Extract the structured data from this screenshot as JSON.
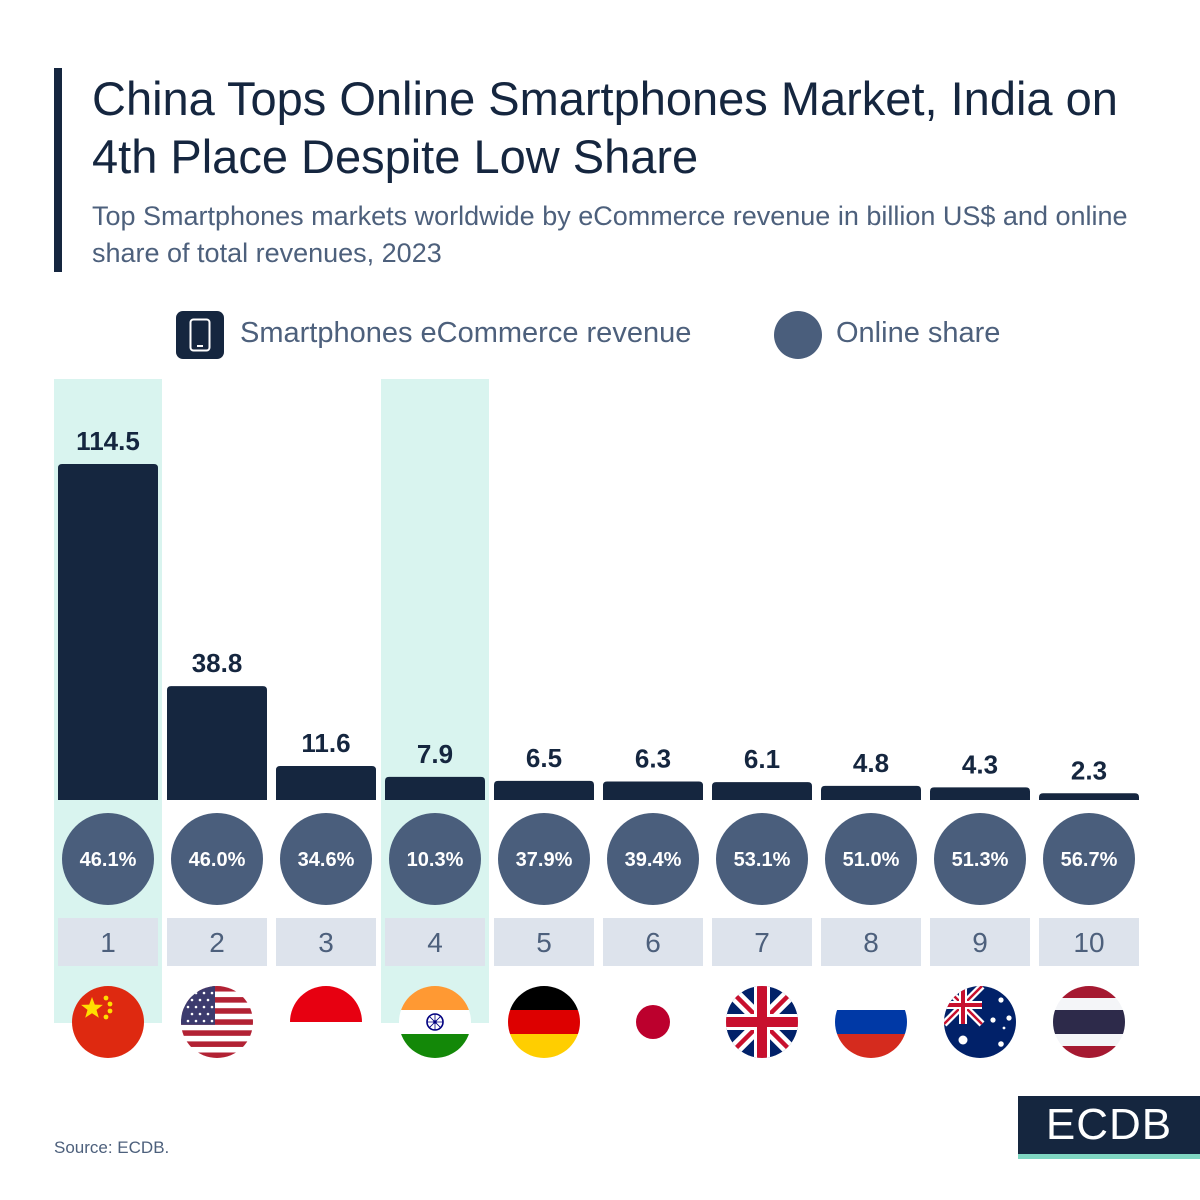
{
  "header": {
    "title": "China Tops Online Smartphones Market, India on 4th Place Despite Low Share",
    "subtitle": "Top Smartphones markets worldwide by eCommerce revenue in billion US$ and online share of total revenues, 2023"
  },
  "legend": {
    "revenue_label": "Smartphones eCommerce revenue",
    "share_label": "Online share",
    "revenue_icon": "smartphone-icon"
  },
  "chart_data": {
    "type": "bar",
    "categories": [
      "1",
      "2",
      "3",
      "4",
      "5",
      "6",
      "7",
      "8",
      "9",
      "10"
    ],
    "countries": [
      "China",
      "United States",
      "Indonesia",
      "India",
      "Germany",
      "Japan",
      "United Kingdom",
      "Russia",
      "Australia",
      "Thailand"
    ],
    "series": [
      {
        "name": "Smartphones eCommerce revenue",
        "values": [
          114.5,
          38.8,
          11.6,
          7.9,
          6.5,
          6.3,
          6.1,
          4.8,
          4.3,
          2.3
        ]
      },
      {
        "name": "Online share",
        "values": [
          "46.1%",
          "46.0%",
          "34.6%",
          "10.3%",
          "37.9%",
          "39.4%",
          "53.1%",
          "51.0%",
          "51.3%",
          "56.7%"
        ]
      }
    ],
    "highlighted": [
      "1",
      "4"
    ],
    "ylim": [
      0,
      114.5
    ],
    "colors": {
      "bar": "#15263f",
      "share_circle": "#4a5e7c",
      "highlight": "#d9f4ef",
      "rank_box": "#dde3ec"
    }
  },
  "footer": {
    "source": "Source: ECDB.",
    "logo": "ECDB"
  }
}
